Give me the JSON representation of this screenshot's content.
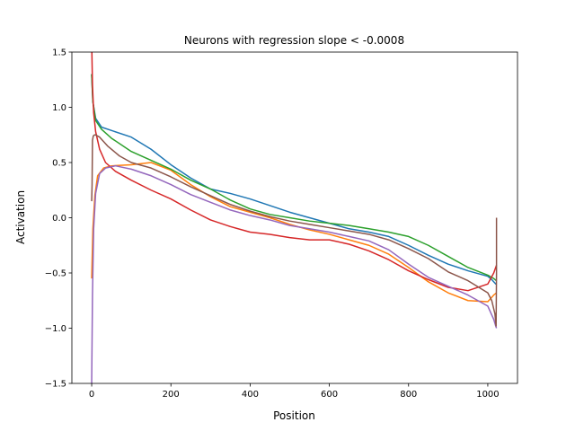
{
  "chart_data": {
    "type": "line",
    "title": "Neurons with regression slope < -0.0008",
    "xlabel": "Position",
    "ylabel": "Activation",
    "xlim": [
      -50,
      1075
    ],
    "ylim": [
      -1.5,
      1.5
    ],
    "xticks": [
      0,
      200,
      400,
      600,
      800,
      1000
    ],
    "xtick_labels": [
      "0",
      "200",
      "400",
      "600",
      "800",
      "1000"
    ],
    "yticks": [
      -1.5,
      -1.0,
      -0.5,
      0.0,
      0.5,
      1.0,
      1.5
    ],
    "ytick_labels": [
      "−1.5",
      "−1.0",
      "−0.5",
      "0.0",
      "0.5",
      "1.0",
      "1.5"
    ],
    "grid": false,
    "legend": "none",
    "series": [
      {
        "color": "#1f77b4",
        "x": [
          0,
          3,
          10,
          25,
          50,
          100,
          150,
          200,
          250,
          300,
          350,
          400,
          450,
          500,
          550,
          600,
          650,
          700,
          750,
          800,
          850,
          900,
          950,
          1000,
          1010,
          1020,
          1022
        ],
        "y": [
          1.3,
          1.05,
          0.9,
          0.82,
          0.79,
          0.73,
          0.62,
          0.48,
          0.36,
          0.26,
          0.22,
          0.17,
          0.11,
          0.05,
          0.0,
          -0.05,
          -0.1,
          -0.13,
          -0.17,
          -0.25,
          -0.34,
          -0.42,
          -0.48,
          -0.53,
          -0.56,
          -0.6,
          -0.6
        ]
      },
      {
        "color": "#ff7f0e",
        "x": [
          0,
          3,
          8,
          15,
          30,
          50,
          100,
          150,
          200,
          250,
          300,
          350,
          400,
          450,
          500,
          550,
          600,
          650,
          700,
          750,
          800,
          850,
          900,
          950,
          1000,
          1015,
          1022
        ],
        "y": [
          -0.55,
          -0.1,
          0.2,
          0.38,
          0.45,
          0.47,
          0.48,
          0.5,
          0.43,
          0.3,
          0.19,
          0.1,
          0.05,
          0.0,
          -0.06,
          -0.11,
          -0.15,
          -0.2,
          -0.25,
          -0.33,
          -0.45,
          -0.58,
          -0.68,
          -0.75,
          -0.76,
          -0.7,
          -0.68
        ]
      },
      {
        "color": "#2ca02c",
        "x": [
          0,
          3,
          10,
          25,
          50,
          100,
          150,
          200,
          250,
          300,
          350,
          400,
          450,
          500,
          550,
          600,
          650,
          700,
          750,
          800,
          850,
          900,
          950,
          1000,
          1015,
          1022
        ],
        "y": [
          1.3,
          1.05,
          0.88,
          0.8,
          0.72,
          0.6,
          0.52,
          0.44,
          0.34,
          0.26,
          0.16,
          0.08,
          0.03,
          0.0,
          -0.03,
          -0.05,
          -0.07,
          -0.1,
          -0.13,
          -0.17,
          -0.25,
          -0.35,
          -0.45,
          -0.52,
          -0.55,
          -0.57
        ]
      },
      {
        "color": "#d62728",
        "x": [
          0,
          2,
          5,
          10,
          20,
          35,
          60,
          100,
          150,
          200,
          250,
          300,
          350,
          400,
          450,
          500,
          550,
          600,
          650,
          700,
          750,
          800,
          850,
          900,
          950,
          1000,
          1015,
          1022
        ],
        "y": [
          1.6,
          1.2,
          0.95,
          0.78,
          0.62,
          0.5,
          0.42,
          0.34,
          0.25,
          0.17,
          0.07,
          -0.02,
          -0.08,
          -0.13,
          -0.15,
          -0.18,
          -0.2,
          -0.2,
          -0.24,
          -0.3,
          -0.38,
          -0.48,
          -0.56,
          -0.63,
          -0.66,
          -0.6,
          -0.5,
          -0.43
        ]
      },
      {
        "color": "#9467bd",
        "x": [
          0,
          2,
          5,
          10,
          20,
          35,
          60,
          100,
          150,
          200,
          250,
          300,
          350,
          400,
          450,
          500,
          550,
          600,
          650,
          700,
          750,
          800,
          850,
          900,
          950,
          1000,
          1015,
          1020,
          1022
        ],
        "y": [
          -1.5,
          -0.7,
          -0.1,
          0.22,
          0.4,
          0.45,
          0.47,
          0.44,
          0.38,
          0.3,
          0.21,
          0.14,
          0.07,
          0.02,
          -0.02,
          -0.07,
          -0.1,
          -0.13,
          -0.17,
          -0.21,
          -0.29,
          -0.42,
          -0.54,
          -0.62,
          -0.7,
          -0.8,
          -0.92,
          -0.98,
          -1.0
        ]
      },
      {
        "color": "#8c564b",
        "x": [
          0,
          1,
          2,
          4,
          7,
          10,
          20,
          40,
          70,
          100,
          150,
          200,
          250,
          300,
          350,
          400,
          450,
          500,
          550,
          600,
          650,
          700,
          750,
          800,
          850,
          900,
          950,
          1000,
          1010,
          1018,
          1021,
          1022,
          1022
        ],
        "y": [
          0.15,
          0.3,
          0.7,
          0.74,
          0.75,
          0.75,
          0.73,
          0.65,
          0.56,
          0.5,
          0.45,
          0.37,
          0.28,
          0.2,
          0.12,
          0.06,
          0.01,
          -0.03,
          -0.06,
          -0.09,
          -0.12,
          -0.15,
          -0.2,
          -0.28,
          -0.37,
          -0.49,
          -0.57,
          -0.68,
          -0.75,
          -0.87,
          -0.98,
          -0.5,
          0.0
        ]
      }
    ]
  }
}
